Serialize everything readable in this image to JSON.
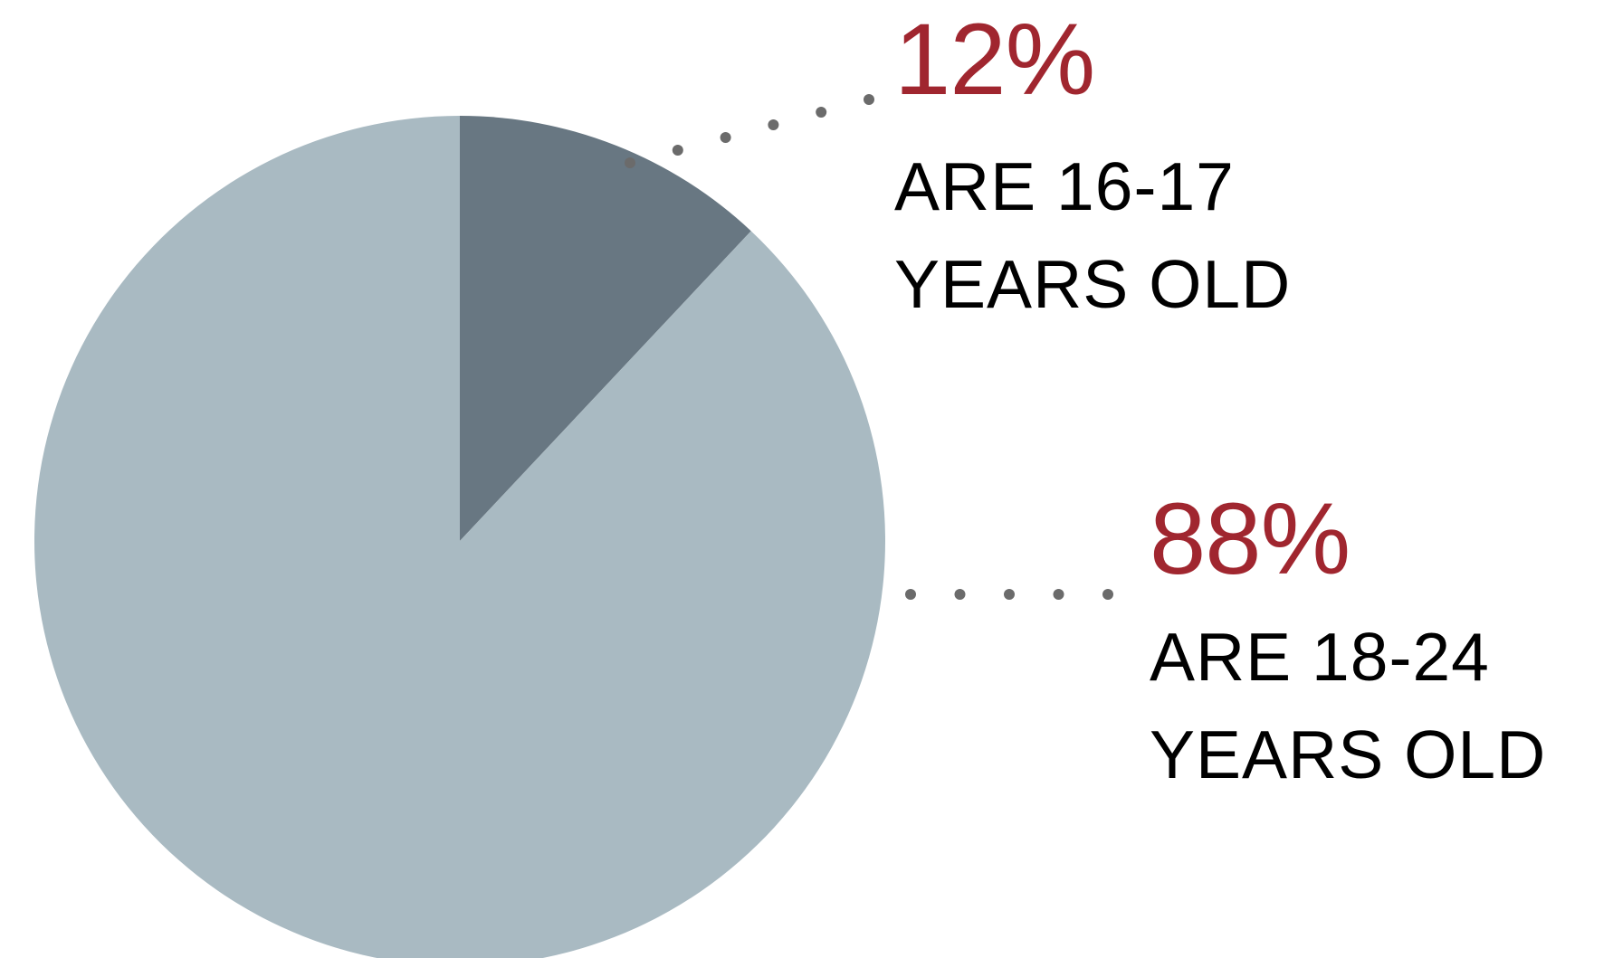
{
  "chart_data": {
    "type": "pie",
    "slices": [
      {
        "label_value": "12%",
        "label_line1": "ARE 16-17",
        "label_line2": "YEARS OLD",
        "value": 12,
        "color": "#687782"
      },
      {
        "label_value": "88%",
        "label_line1": "ARE 18-24",
        "label_line2": "YEARS OLD",
        "value": 88,
        "color": "#a9bac2"
      }
    ],
    "start_angle": "12 o'clock",
    "direction": "clockwise",
    "label_color": "#a0262f",
    "leader_color": "#6b6b6b"
  }
}
